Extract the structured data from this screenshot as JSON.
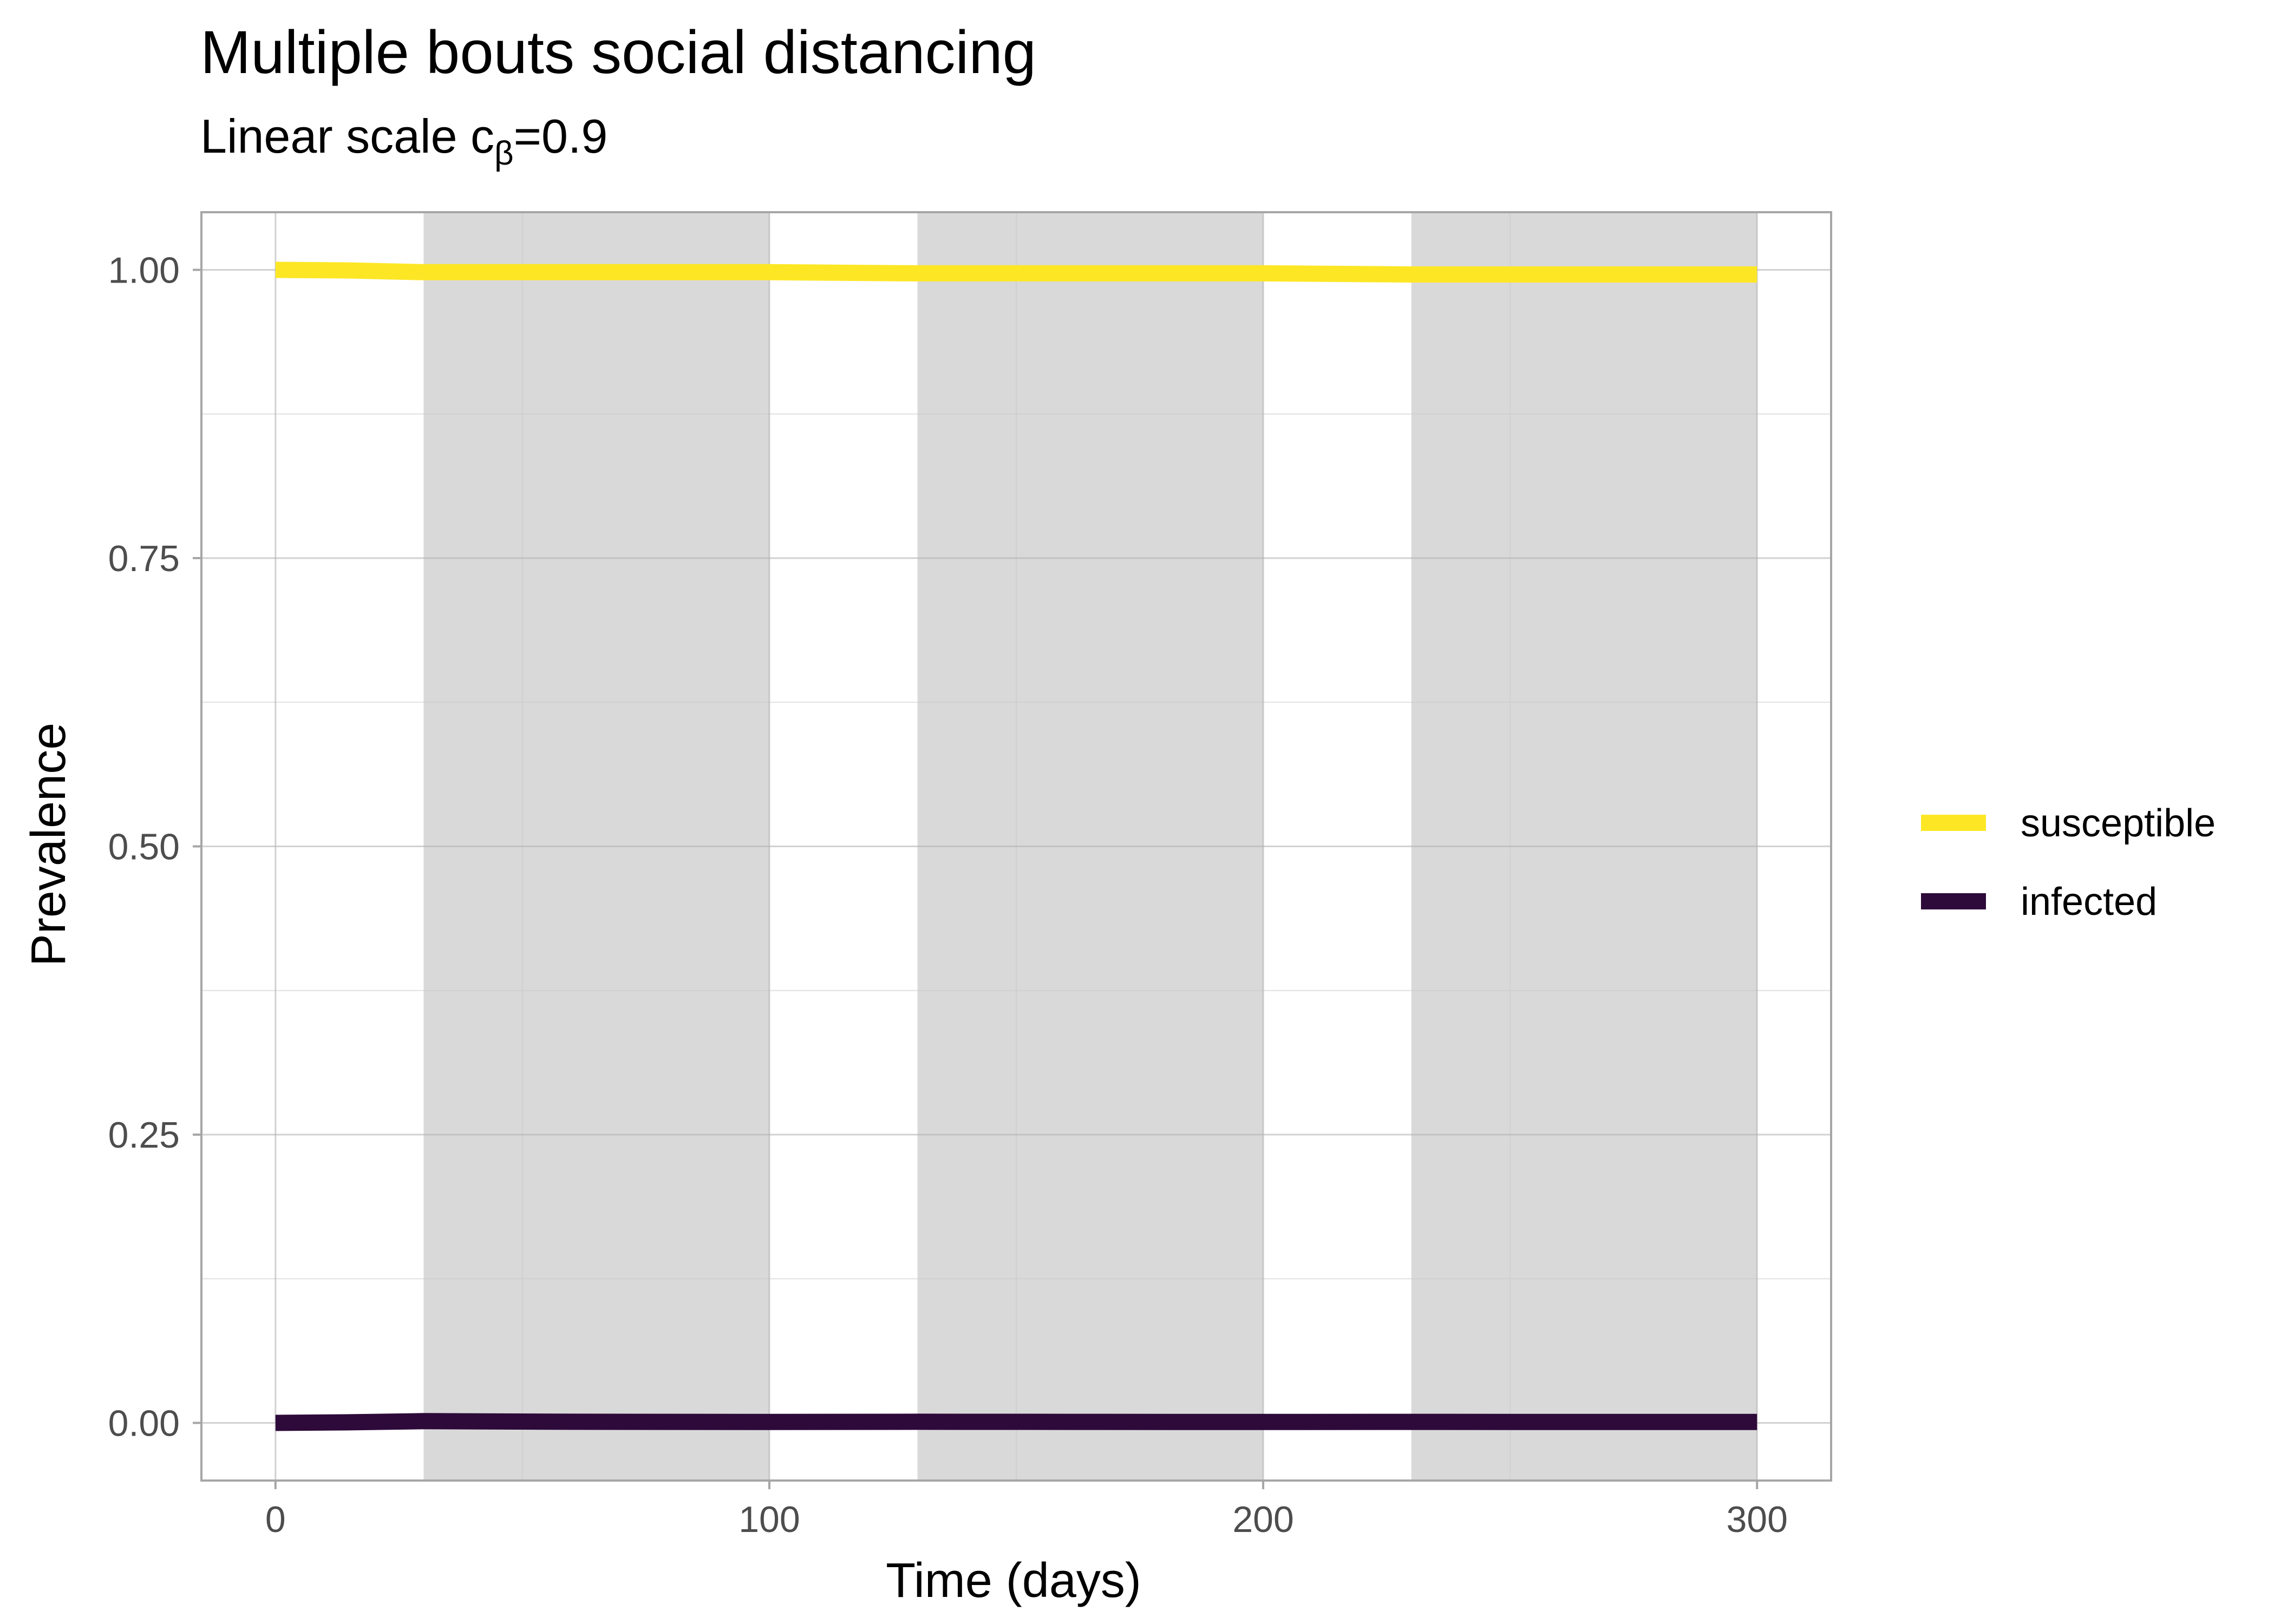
{
  "chart_data": {
    "type": "line",
    "title": "Multiple bouts social distancing",
    "subtitle_prefix": "Linear scale c",
    "subtitle_subscript": "β",
    "subtitle_suffix": "=0.9",
    "xlabel": "Time (days)",
    "ylabel": "Prevalence",
    "xlim": [
      -15,
      315
    ],
    "ylim": [
      -0.05,
      1.05
    ],
    "x_ticks": [
      0,
      100,
      200,
      300
    ],
    "x_tick_labels": [
      "0",
      "100",
      "200",
      "300"
    ],
    "y_ticks": [
      0,
      0.25,
      0.5,
      0.75,
      1.0
    ],
    "y_tick_labels": [
      "0.00",
      "0.25",
      "0.50",
      "0.75",
      "1.00"
    ],
    "grid": true,
    "shaded_intervals": [
      [
        30,
        100
      ],
      [
        130,
        200
      ],
      [
        230,
        300
      ]
    ],
    "shade_color": "#d9d9d9",
    "legend_position": "right",
    "x": [
      0,
      15,
      30,
      60,
      100,
      130,
      160,
      200,
      230,
      260,
      300
    ],
    "series": [
      {
        "name": "susceptible",
        "color": "#fde725",
        "values": [
          1.0,
          0.9995,
          0.998,
          0.998,
          0.998,
          0.997,
          0.997,
          0.997,
          0.996,
          0.996,
          0.996
        ]
      },
      {
        "name": "infected",
        "color": "#2d0a3a",
        "values": [
          0.0,
          0.0005,
          0.0015,
          0.001,
          0.0008,
          0.001,
          0.0009,
          0.0008,
          0.0009,
          0.0008,
          0.0008
        ]
      }
    ]
  }
}
